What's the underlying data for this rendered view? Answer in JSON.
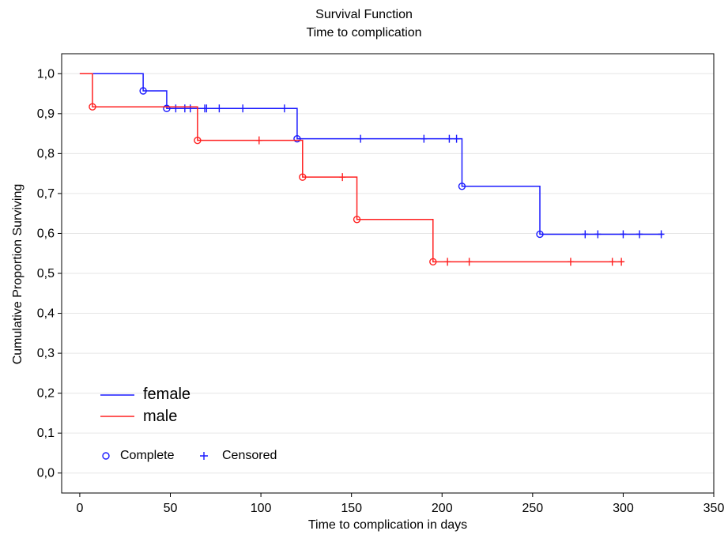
{
  "chart_data": {
    "type": "line",
    "title": "Survival Function",
    "subtitle": "Time to complication",
    "xlabel": "Time to complication in days",
    "ylabel": "Cumulative Proportion Surviving",
    "xlim": [
      -10,
      350
    ],
    "ylim": [
      -0.05,
      1.05
    ],
    "xticks": [
      0,
      50,
      100,
      150,
      200,
      250,
      300,
      350
    ],
    "xtick_labels": [
      "0",
      "50",
      "100",
      "150",
      "200",
      "250",
      "300",
      "350"
    ],
    "yticks": [
      0.0,
      0.1,
      0.2,
      0.3,
      0.4,
      0.5,
      0.6,
      0.7,
      0.8,
      0.9,
      1.0
    ],
    "ytick_labels": [
      "0,0",
      "0,1",
      "0,2",
      "0,3",
      "0,4",
      "0,5",
      "0,6",
      "0,7",
      "0,8",
      "0,9",
      "1,0"
    ],
    "grid": "horizontal",
    "legend_position": "bottom-left",
    "marker_legend": {
      "complete": "Complete",
      "censored": "Censored"
    },
    "series": [
      {
        "name": "female",
        "color": "#1a1aff",
        "start": [
          0,
          1.0
        ],
        "end_x": 322,
        "events": [
          [
            35,
            0.957
          ],
          [
            48,
            0.913
          ],
          [
            120,
            0.837
          ],
          [
            211,
            0.718
          ],
          [
            254,
            0.598
          ]
        ],
        "censored": [
          [
            53,
            0.913
          ],
          [
            58,
            0.913
          ],
          [
            61,
            0.913
          ],
          [
            69,
            0.913
          ],
          [
            70,
            0.913
          ],
          [
            77,
            0.913
          ],
          [
            90,
            0.913
          ],
          [
            113,
            0.913
          ],
          [
            155,
            0.837
          ],
          [
            190,
            0.837
          ],
          [
            204,
            0.837
          ],
          [
            208,
            0.837
          ],
          [
            279,
            0.598
          ],
          [
            286,
            0.598
          ],
          [
            300,
            0.598
          ],
          [
            309,
            0.598
          ],
          [
            321,
            0.598
          ]
        ]
      },
      {
        "name": "male",
        "color": "#ff2020",
        "start": [
          0,
          1.0
        ],
        "end_x": 300,
        "events": [
          [
            7,
            0.917
          ],
          [
            65,
            0.833
          ],
          [
            123,
            0.741
          ],
          [
            153,
            0.635
          ],
          [
            195,
            0.529
          ]
        ],
        "censored": [
          [
            99,
            0.833
          ],
          [
            145,
            0.741
          ],
          [
            203,
            0.529
          ],
          [
            215,
            0.529
          ],
          [
            271,
            0.529
          ],
          [
            294,
            0.529
          ],
          [
            299,
            0.529
          ]
        ]
      }
    ]
  }
}
